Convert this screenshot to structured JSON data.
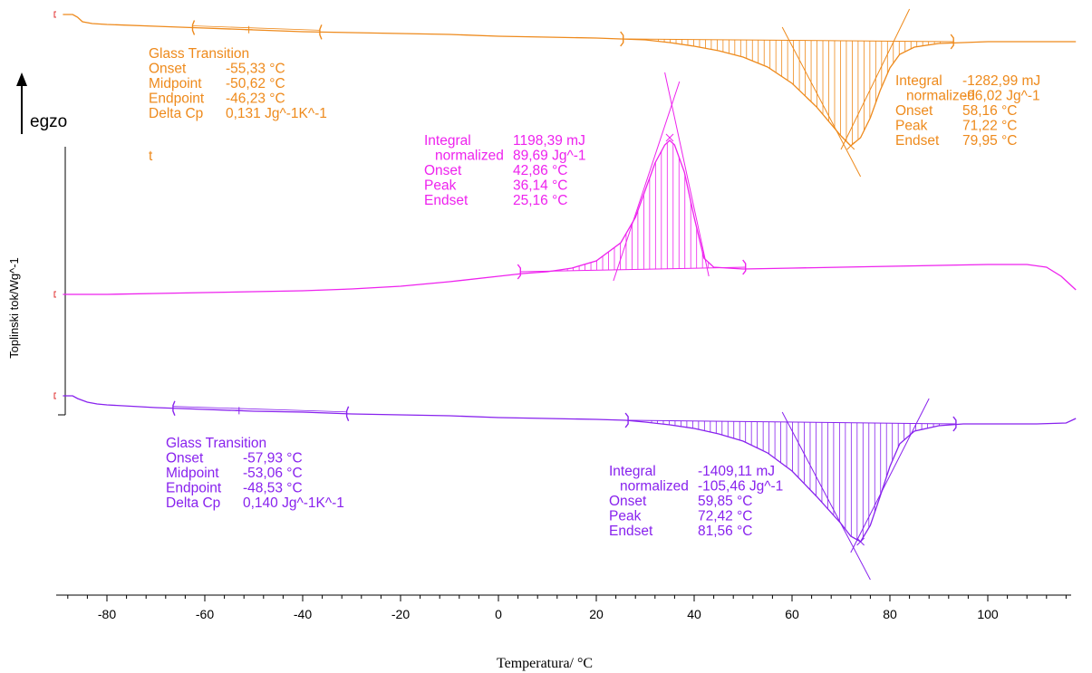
{
  "chart_data": {
    "type": "line",
    "title": "",
    "xlabel": "Temperatura/ °C",
    "ylabel": "Toplinski tok/Wg^-1",
    "exo_label": "egzo",
    "xlim": [
      -89,
      118
    ],
    "xticks": [
      -80,
      -60,
      -40,
      -20,
      0,
      20,
      40,
      60,
      80,
      100
    ],
    "colors": {
      "orange": "#ee8a1c",
      "magenta": "#ee22ee",
      "purple": "#8822ee",
      "axis": "#000000"
    },
    "series": [
      {
        "color": "orange",
        "points": [
          [
            -89,
            16
          ],
          [
            -87,
            16
          ],
          [
            -86,
            19
          ],
          [
            -85,
            24
          ],
          [
            -83,
            26
          ],
          [
            -80,
            27
          ],
          [
            -70,
            29
          ],
          [
            -60,
            31
          ],
          [
            -50,
            33
          ],
          [
            -40,
            35
          ],
          [
            -30,
            36
          ],
          [
            -20,
            37
          ],
          [
            -10,
            38
          ],
          [
            0,
            40
          ],
          [
            10,
            41
          ],
          [
            20,
            42
          ],
          [
            25,
            43
          ],
          [
            30,
            44
          ],
          [
            35,
            47
          ],
          [
            40,
            51
          ],
          [
            45,
            56
          ],
          [
            50,
            63
          ],
          [
            55,
            74
          ],
          [
            60,
            92
          ],
          [
            65,
            118
          ],
          [
            70,
            150
          ],
          [
            72,
            161
          ],
          [
            74,
            152
          ],
          [
            76,
            130
          ],
          [
            78,
            100
          ],
          [
            80,
            75
          ],
          [
            82,
            60
          ],
          [
            85,
            52
          ],
          [
            90,
            48
          ],
          [
            95,
            47
          ],
          [
            100,
            46
          ],
          [
            110,
            46
          ],
          [
            118,
            46
          ]
        ]
      },
      {
        "color": "magenta",
        "points": [
          [
            -89,
            325
          ],
          [
            -80,
            325
          ],
          [
            -70,
            324
          ],
          [
            -60,
            323
          ],
          [
            -50,
            322
          ],
          [
            -40,
            321
          ],
          [
            -30,
            319
          ],
          [
            -20,
            316
          ],
          [
            -10,
            311
          ],
          [
            0,
            305
          ],
          [
            5,
            302
          ],
          [
            10,
            300
          ],
          [
            15,
            296
          ],
          [
            20,
            288
          ],
          [
            25,
            268
          ],
          [
            28,
            240
          ],
          [
            30,
            210
          ],
          [
            32,
            180
          ],
          [
            34,
            160
          ],
          [
            35,
            155
          ],
          [
            36,
            160
          ],
          [
            38,
            190
          ],
          [
            40,
            240
          ],
          [
            42,
            285
          ],
          [
            44,
            295
          ],
          [
            50,
            297
          ],
          [
            60,
            296
          ],
          [
            70,
            295
          ],
          [
            80,
            294
          ],
          [
            90,
            293
          ],
          [
            100,
            292
          ],
          [
            108,
            292
          ],
          [
            112,
            295
          ],
          [
            115,
            305
          ],
          [
            118,
            320
          ]
        ]
      },
      {
        "color": "purple",
        "points": [
          [
            -89,
            437
          ],
          [
            -87,
            437
          ],
          [
            -86,
            440
          ],
          [
            -84,
            444
          ],
          [
            -82,
            446
          ],
          [
            -80,
            447
          ],
          [
            -70,
            450
          ],
          [
            -60,
            452
          ],
          [
            -50,
            454
          ],
          [
            -40,
            455
          ],
          [
            -30,
            457
          ],
          [
            -20,
            458
          ],
          [
            -10,
            459
          ],
          [
            0,
            461
          ],
          [
            10,
            462
          ],
          [
            20,
            463
          ],
          [
            26,
            464
          ],
          [
            30,
            466
          ],
          [
            35,
            469
          ],
          [
            40,
            473
          ],
          [
            45,
            479
          ],
          [
            50,
            487
          ],
          [
            55,
            500
          ],
          [
            60,
            520
          ],
          [
            65,
            548
          ],
          [
            70,
            578
          ],
          [
            72,
            592
          ],
          [
            74,
            598
          ],
          [
            76,
            580
          ],
          [
            78,
            548
          ],
          [
            80,
            515
          ],
          [
            82,
            490
          ],
          [
            85,
            476
          ],
          [
            90,
            470
          ],
          [
            95,
            468
          ],
          [
            100,
            468
          ],
          [
            110,
            468
          ],
          [
            116,
            467
          ],
          [
            118,
            462
          ]
        ]
      }
    ],
    "annotations": {
      "orange_glass": {
        "lines": [
          [
            "Glass Transition",
            ""
          ],
          [
            "Onset",
            "-55,33 °C"
          ],
          [
            "Midpoint",
            "-50,62 °C"
          ],
          [
            "Endpoint",
            "-46,23 °C"
          ],
          [
            "Delta Cp",
            "0,131 Jg^-1K^-1"
          ]
        ],
        "extra": "t"
      },
      "orange_peak": {
        "lines": [
          [
            "Integral",
            "-1282,99 mJ"
          ],
          [
            "normalized",
            "-96,02 Jg^-1"
          ],
          [
            "Onset",
            "58,16 °C"
          ],
          [
            "Peak",
            "71,22 °C"
          ],
          [
            "Endset",
            "79,95 °C"
          ]
        ]
      },
      "magenta_peak": {
        "lines": [
          [
            "Integral",
            "1198,39 mJ"
          ],
          [
            "normalized",
            "89,69 Jg^-1"
          ],
          [
            "Onset",
            "42,86 °C"
          ],
          [
            "Peak",
            "36,14 °C"
          ],
          [
            "Endset",
            "25,16 °C"
          ]
        ]
      },
      "purple_glass": {
        "lines": [
          [
            "Glass Transition",
            ""
          ],
          [
            "Onset",
            "-57,93 °C"
          ],
          [
            "Midpoint",
            "-53,06 °C"
          ],
          [
            "Endpoint",
            "-48,53 °C"
          ],
          [
            "Delta Cp",
            "0,140 Jg^-1K^-1"
          ]
        ]
      },
      "purple_peak": {
        "lines": [
          [
            "Integral",
            "-1409,11 mJ"
          ],
          [
            "normalized",
            "-105,46 Jg^-1"
          ],
          [
            "Onset",
            "59,85 °C"
          ],
          [
            "Peak",
            "72,42 °C"
          ],
          [
            "Endset",
            "81,56 °C"
          ]
        ]
      }
    },
    "peak_fills": [
      {
        "color": "orange",
        "from": 25.5,
        "to": 93,
        "baseline": [
          43,
          46
        ]
      },
      {
        "color": "magenta",
        "from": 4.5,
        "to": 50.5,
        "baseline": [
          300,
          295
        ]
      },
      {
        "color": "purple",
        "from": 26.5,
        "to": 93.5,
        "baseline": [
          464,
          468
        ]
      }
    ],
    "glass_markers": [
      {
        "color": "orange",
        "x": [
          -62.5,
          -51,
          -36.5
        ]
      },
      {
        "color": "purple",
        "x": [
          -66.5,
          -53,
          -31
        ]
      }
    ]
  }
}
